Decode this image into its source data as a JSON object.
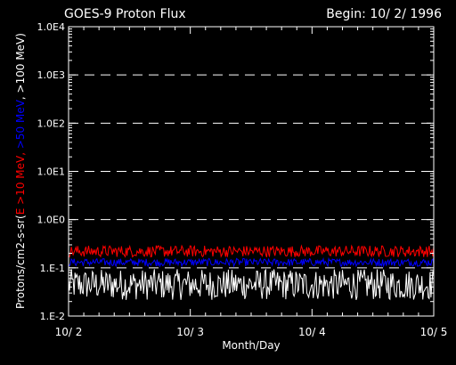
{
  "chart_data": {
    "type": "line",
    "title": "GOES-9 Proton Flux",
    "begin_label": "Begin: 10/ 2/ 1996",
    "xlabel": "Month/Day",
    "ylabel_parts": [
      {
        "text": "Protons/cm2-s-sr(",
        "color": "#ffffff"
      },
      {
        "text": "E >10 MeV, ",
        "color": "#ff0000"
      },
      {
        "text": ">50 MeV",
        "color": "#0000ff"
      },
      {
        "text": ", >100 MeV)",
        "color": "#ffffff"
      }
    ],
    "x_tick_labels": [
      "10/ 2",
      "10/ 3",
      "10/ 4",
      "10/ 5"
    ],
    "xlim": [
      0,
      3
    ],
    "y_scale": "log",
    "ylim": [
      0.01,
      10000
    ],
    "y_ticks": [
      0.01,
      0.1,
      1,
      10,
      100,
      1000,
      10000
    ],
    "y_tick_labels": [
      "1.E-2",
      "1.E-1",
      "1.0E0",
      "1.0E1",
      "1.0E2",
      "1.0E3",
      "1.0E4"
    ],
    "grid": {
      "y": true,
      "style": "dashed"
    },
    "background": "#000000",
    "foreground": "#ffffff",
    "series": [
      {
        "name": "E >10 MeV",
        "color": "#ff0000",
        "center": 0.22,
        "spread": 0.12
      },
      {
        "name": ">50 MeV",
        "color": "#0000ff",
        "center": 0.13,
        "spread": 0.08
      },
      {
        "name": ">100 MeV",
        "color": "#ffffff",
        "center": 0.045,
        "spread": 0.32
      }
    ]
  }
}
